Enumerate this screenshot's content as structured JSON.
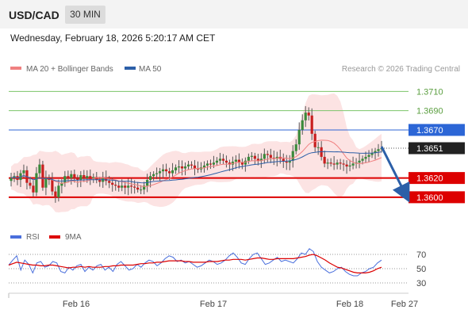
{
  "header": {
    "symbol": "USD/CAD",
    "timeframe": "30 MIN",
    "datetime": "Wednesday, February 18, 2026 5:20:17 AM CET"
  },
  "legend": {
    "ma20_label": "MA 20 + Bollinger Bands",
    "ma50_label": "MA 50",
    "credit": "Research © 2026 Trading Central",
    "ma20_color": "#f08080",
    "ma50_color": "#2c5fa8"
  },
  "rsi_legend": {
    "rsi_label": "RSI",
    "ma_label": "9MA",
    "rsi_color": "#4a6fdc",
    "ma_color": "#dd0000"
  },
  "chart_data": {
    "type": "candlestick",
    "title": "",
    "ylim": [
      1.3576,
      1.3726
    ],
    "levels": [
      {
        "value": 1.371,
        "label": "1.3710",
        "color": "#7cc46a",
        "style": "line"
      },
      {
        "value": 1.369,
        "label": "1.3690",
        "color": "#7cc46a",
        "style": "line"
      },
      {
        "value": 1.367,
        "label": "1.3670",
        "color": "#2c66d6",
        "style": "line"
      },
      {
        "value": 1.3651,
        "label": "1.3651",
        "color": "#222222",
        "style": "current"
      },
      {
        "value": 1.362,
        "label": "1.3620",
        "color": "#dd0000",
        "style": "line"
      },
      {
        "value": 1.36,
        "label": "1.3600",
        "color": "#dd0000",
        "style": "line"
      }
    ],
    "x_ticks": [
      "Feb 16",
      "Feb 17",
      "Feb 18",
      "Feb 27"
    ],
    "series": [
      {
        "name": "MA 20 + Bollinger Bands",
        "color": "#f08080"
      },
      {
        "name": "MA 50",
        "color": "#2c5fa8"
      }
    ],
    "forecast": {
      "from": 1.3651,
      "to": 1.36,
      "color": "#2c5fa8"
    },
    "candles_approx": [
      1.362,
      1.3622,
      1.3618,
      1.3625,
      1.3628,
      1.3615,
      1.3612,
      1.3605,
      1.3625,
      1.3634,
      1.361,
      1.362,
      1.3618,
      1.3606,
      1.36,
      1.3612,
      1.3615,
      1.3622,
      1.362,
      1.3624,
      1.362,
      1.3618,
      1.3623,
      1.362,
      1.3622,
      1.3619,
      1.3621,
      1.3618,
      1.3616,
      1.362,
      1.3617,
      1.3615,
      1.3613,
      1.3612,
      1.361,
      1.3612,
      1.361,
      1.3612,
      1.3611,
      1.361,
      1.3608,
      1.3608,
      1.3612,
      1.3618,
      1.3622,
      1.3624,
      1.3625,
      1.3627,
      1.3629,
      1.3627,
      1.3625,
      1.3628,
      1.3631,
      1.3632,
      1.363,
      1.3632,
      1.3634,
      1.3633,
      1.363,
      1.3629,
      1.3631,
      1.3633,
      1.3635,
      1.3634,
      1.3636,
      1.3638,
      1.364,
      1.3638,
      1.3636,
      1.3634,
      1.3637,
      1.3639,
      1.3636,
      1.3634,
      1.3638,
      1.3642,
      1.3643,
      1.364,
      1.3638,
      1.364,
      1.3645,
      1.3644,
      1.3641,
      1.364,
      1.3642,
      1.364,
      1.3637,
      1.3636,
      1.3638,
      1.3648,
      1.3655,
      1.367,
      1.368,
      1.3688,
      1.3685,
      1.3666,
      1.3652,
      1.3652,
      1.3642,
      1.3635,
      1.3636,
      1.3635,
      1.3634,
      1.3636,
      1.3635,
      1.3634,
      1.3632,
      1.3633,
      1.3635,
      1.3636,
      1.3638,
      1.364,
      1.3642,
      1.3644,
      1.3646,
      1.3648,
      1.365,
      1.3651
    ],
    "rsi": {
      "ylim": [
        20,
        80
      ],
      "ticks": [
        70,
        50,
        30
      ],
      "rsi_approx": [
        55,
        62,
        68,
        48,
        62,
        56,
        44,
        58,
        60,
        52,
        54,
        60,
        58,
        46,
        44,
        52,
        48,
        54,
        56,
        46,
        52,
        48,
        54,
        56,
        48,
        52,
        46,
        56,
        60,
        54,
        48,
        50,
        56,
        52,
        58,
        62,
        60,
        54,
        58,
        64,
        68,
        66,
        60,
        62,
        58,
        60,
        56,
        52,
        54,
        58,
        62,
        60,
        56,
        58,
        62,
        68,
        72,
        66,
        58,
        56,
        64,
        70,
        72,
        64,
        56,
        58,
        62,
        66,
        60,
        62,
        60,
        58,
        64,
        72,
        70,
        78,
        74,
        60,
        52,
        48,
        44,
        46,
        50,
        52,
        46,
        42,
        40,
        40,
        44,
        46,
        50,
        52,
        58,
        62
      ],
      "ma_approx": [
        55,
        57,
        59,
        58,
        57,
        56,
        55,
        55,
        54,
        54,
        55,
        55,
        54,
        53,
        52,
        51,
        52,
        52,
        53,
        52,
        53,
        52,
        52,
        52,
        53,
        53,
        54,
        54,
        55,
        55,
        55,
        55,
        56,
        57,
        57,
        58,
        58,
        59,
        59,
        60,
        61,
        61,
        61,
        61,
        60,
        60,
        59,
        59,
        59,
        59,
        60,
        60,
        60,
        61,
        62,
        62,
        63,
        63,
        63,
        62,
        63,
        64,
        65,
        65,
        64,
        63,
        63,
        64,
        64,
        64,
        64,
        64,
        65,
        66,
        67,
        69,
        70,
        68,
        65,
        62,
        58,
        55,
        52,
        51,
        49,
        47,
        45,
        44,
        44,
        44,
        45,
        47,
        50,
        52
      ]
    }
  }
}
